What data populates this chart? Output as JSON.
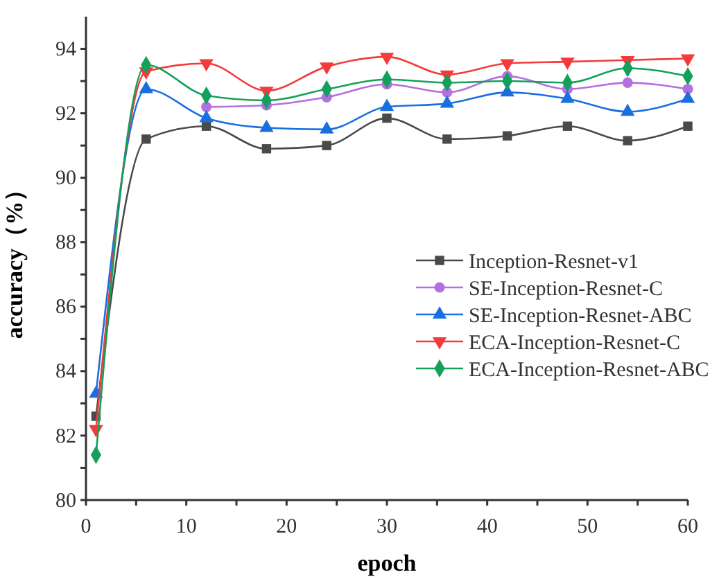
{
  "chart_data": {
    "type": "line",
    "xlabel": "epoch",
    "ylabel": "accuracy（%）",
    "x": [
      1,
      6,
      12,
      18,
      24,
      30,
      36,
      42,
      48,
      54,
      60
    ],
    "xlim": [
      0,
      60
    ],
    "xticks": [
      0,
      {
        "value": 5,
        "label": null
      },
      10,
      {
        "value": 15,
        "label": null
      },
      20,
      {
        "value": 25,
        "label": null
      },
      30,
      {
        "value": 35,
        "label": null
      },
      40,
      {
        "value": 45,
        "label": null
      },
      50,
      {
        "value": 55,
        "label": null
      },
      60
    ],
    "ylim": [
      80,
      95
    ],
    "yticks": [
      80,
      {
        "value": 81,
        "label": null
      },
      82,
      {
        "value": 83,
        "label": null
      },
      84,
      {
        "value": 85,
        "label": null
      },
      86,
      {
        "value": 87,
        "label": null
      },
      88,
      {
        "value": 89,
        "label": null
      },
      90,
      {
        "value": 91,
        "label": null
      },
      92,
      {
        "value": 93,
        "label": null
      },
      94
    ],
    "grid": false,
    "legend": "right",
    "line_style": "solid",
    "series": [
      {
        "name": "Inception-Resnet-v1",
        "color": "#4a4a4a",
        "marker": "square",
        "values": [
          82.6,
          91.2,
          91.6,
          90.9,
          91.0,
          91.85,
          91.2,
          91.3,
          91.6,
          91.15,
          91.6
        ]
      },
      {
        "name": "SE-Inception-Resnet-C",
        "color": "#b46fe0",
        "marker": "circle",
        "values": [
          null,
          null,
          92.2,
          92.25,
          92.5,
          92.9,
          92.65,
          93.15,
          92.75,
          92.95,
          92.75
        ]
      },
      {
        "name": "SE-Inception-Resnet-ABC",
        "color": "#1a6fe0",
        "marker": "triangle",
        "values": [
          83.3,
          92.75,
          91.85,
          91.55,
          91.5,
          92.2,
          92.3,
          92.65,
          92.45,
          92.05,
          92.45
        ]
      },
      {
        "name": "ECA-Inception-Resnet-C",
        "color": "#f43a3a",
        "marker": "triangle-down",
        "values": [
          82.2,
          93.3,
          93.55,
          92.7,
          93.45,
          93.75,
          93.2,
          93.55,
          93.6,
          93.65,
          93.7
        ]
      },
      {
        "name": "ECA-Inception-Resnet-ABC",
        "color": "#12a05a",
        "marker": "diamond",
        "values": [
          81.4,
          93.5,
          92.55,
          92.4,
          92.75,
          93.05,
          92.95,
          93.0,
          92.95,
          93.4,
          93.15
        ]
      }
    ]
  }
}
